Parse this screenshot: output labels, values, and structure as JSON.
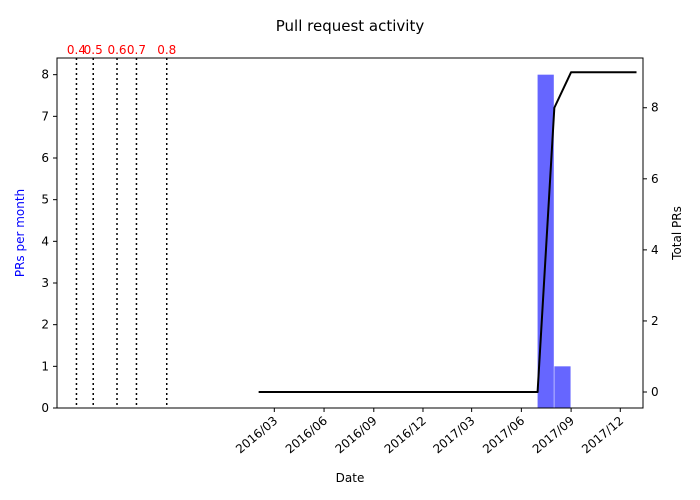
{
  "chart_data": {
    "type": "bar+line",
    "title": "Pull request activity",
    "xlabel": "Date",
    "ylabel_left": "PRs per month",
    "ylabel_right": "Total PRs",
    "ylim_left": [
      0,
      8.4
    ],
    "ylim_right": [
      -0.45,
      9.4
    ],
    "xlim": [
      "2015-01-24",
      "2018-01-12"
    ],
    "left_ticks": [
      0,
      1,
      2,
      3,
      4,
      5,
      6,
      7,
      8
    ],
    "right_ticks": [
      0,
      2,
      4,
      6,
      8
    ],
    "x_ticks": [
      {
        "date": "2016-03-01",
        "label": "2016/03"
      },
      {
        "date": "2016-06-01",
        "label": "2016/06"
      },
      {
        "date": "2016-09-01",
        "label": "2016/09"
      },
      {
        "date": "2016-12-01",
        "label": "2016/12"
      },
      {
        "date": "2017-03-01",
        "label": "2017/03"
      },
      {
        "date": "2017-06-01",
        "label": "2017/06"
      },
      {
        "date": "2017-09-01",
        "label": "2017/09"
      },
      {
        "date": "2017-12-01",
        "label": "2017/12"
      }
    ],
    "bars": {
      "series": "PRs per month",
      "color": "#6666ff",
      "axis": "left",
      "data": [
        {
          "month": "2017-07",
          "value": 8
        },
        {
          "month": "2017-08",
          "value": 1
        }
      ]
    },
    "total_line": {
      "series": "Total PRs",
      "color": "#000000",
      "axis": "right",
      "points": [
        {
          "date": "2016-02-01",
          "value": 0
        },
        {
          "date": "2017-07-01",
          "value": 0
        },
        {
          "date": "2017-08-01",
          "value": 8
        },
        {
          "date": "2017-09-01",
          "value": 9
        },
        {
          "date": "2017-12-31",
          "value": 9
        }
      ]
    },
    "releases": {
      "color": "#ff0000",
      "line_style": "dotted",
      "items": [
        {
          "label": "0.4",
          "date": "2015-03-01"
        },
        {
          "label": "0.5",
          "date": "2015-04-01"
        },
        {
          "label": "0.6",
          "date": "2015-05-15"
        },
        {
          "label": "0.7",
          "date": "2015-06-20"
        },
        {
          "label": "0.8",
          "date": "2015-08-15"
        }
      ]
    },
    "grid": false,
    "legend": "none"
  }
}
